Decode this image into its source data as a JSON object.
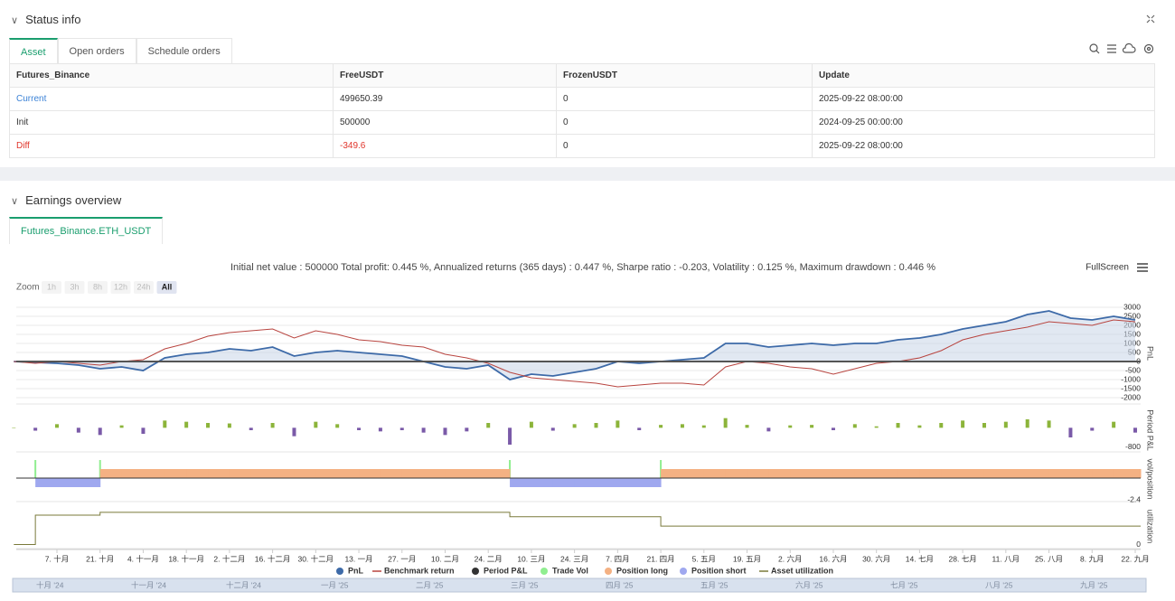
{
  "status": {
    "title": "Status info",
    "tabs": [
      "Asset",
      "Open orders",
      "Schedule orders"
    ],
    "table": {
      "columns": [
        "Futures_Binance",
        "FreeUSDT",
        "FrozenUSDT",
        "Update"
      ],
      "rows": [
        [
          "Current",
          499650.39,
          0,
          "2025-09-22 08:00:00"
        ],
        [
          "Init",
          500000,
          0,
          "2024-09-25 00:00:00"
        ],
        [
          "Diff",
          -349.6,
          0,
          "2025-09-22 08:00:00"
        ]
      ]
    }
  },
  "earnings": {
    "title": "Earnings overview",
    "tab": "Futures_Binance.ETH_USDT",
    "summary": "Initial net value : 500000 Total profit: 0.445 %, Annualized returns (365 days) : 0.447 %, Sharpe ratio : -0.203, Volatility : 0.125 %, Maximum drawdown : 0.446 %",
    "fullscreen": "FullScreen",
    "zoom": {
      "label": "Zoom",
      "buttons": [
        "1h",
        "3h",
        "8h",
        "12h",
        "24h",
        "All"
      ]
    }
  },
  "chart_data": {
    "type": "line",
    "categories": [
      null,
      null,
      "7. 十月",
      null,
      "21. 十月",
      null,
      "4. 十一月",
      null,
      "18. 十一月",
      null,
      "2. 十二月",
      null,
      "16. 十二月",
      null,
      "30. 十二月",
      null,
      "13. 一月",
      null,
      "27. 一月",
      null,
      "10. 二月",
      null,
      "24. 二月",
      null,
      "10. 三月",
      null,
      "24. 三月",
      null,
      "7. 四月",
      null,
      "21. 四月",
      null,
      "5. 五月",
      null,
      "19. 五月",
      null,
      "2. 六月",
      null,
      "16. 六月",
      null,
      "30. 六月",
      null,
      "14. 七月",
      null,
      "28. 七月",
      null,
      "11. 八月",
      null,
      "25. 八月",
      null,
      "8. 九月",
      null,
      "22. 九月"
    ],
    "panels": [
      {
        "label": "PnL",
        "ylim": [
          -2350,
          3250
        ],
        "yticks": [
          3000,
          2500,
          2000,
          1500,
          1000,
          500,
          0,
          -500,
          -1000,
          -1500,
          -2000
        ],
        "grid": true
      },
      {
        "label": "Period P&L",
        "ylim": [
          -1000,
          800
        ],
        "yticks": [
          -800
        ],
        "grid": false
      },
      {
        "label": "vol/position",
        "ylim": [
          -2.6,
          2.4
        ],
        "yticks": [
          -2.4
        ],
        "grid": false
      },
      {
        "label": "utilization",
        "ylim": [
          -0.1,
          1
        ],
        "yticks": [
          0
        ],
        "grid": false
      }
    ],
    "series": [
      {
        "name": "PnL",
        "color": "#3d6aa8",
        "mark": "line",
        "area": true,
        "panel": 0,
        "values": [
          0,
          -50,
          -100,
          -200,
          -400,
          -300,
          -500,
          200,
          400,
          500,
          700,
          600,
          800,
          300,
          500,
          600,
          500,
          400,
          300,
          0,
          -300,
          -400,
          -200,
          -1000,
          -700,
          -800,
          -600,
          -400,
          0,
          -100,
          0,
          100,
          200,
          1000,
          1000,
          800,
          900,
          1000,
          900,
          1000,
          1000,
          1200,
          1300,
          1500,
          1800,
          2000,
          2200,
          2600,
          2800,
          2400,
          2300,
          2500,
          2300
        ]
      },
      {
        "name": "Benchmark return",
        "color": "#b8443f",
        "mark": "line",
        "symbol": "line",
        "panel": 0,
        "values": [
          0,
          -100,
          0,
          -100,
          -200,
          0,
          100,
          700,
          1000,
          1400,
          1600,
          1700,
          1800,
          1300,
          1700,
          1500,
          1200,
          1100,
          900,
          800,
          400,
          200,
          -100,
          -600,
          -900,
          -1000,
          -1100,
          -1200,
          -1400,
          -1300,
          -1200,
          -1200,
          -1300,
          -300,
          0,
          -100,
          -300,
          -400,
          -700,
          -400,
          -100,
          0,
          200,
          600,
          1200,
          1500,
          1700,
          1900,
          2200,
          2100,
          2000,
          2300,
          2200
        ]
      },
      {
        "name": "Period P&L",
        "color": "#333333",
        "up_color": "#8cb43a",
        "down_color": "#7a5aa8",
        "mark": "bar",
        "panel": 1,
        "values": [
          0,
          -120,
          150,
          -200,
          -300,
          100,
          -250,
          300,
          250,
          200,
          180,
          -100,
          200,
          -350,
          250,
          150,
          -100,
          -150,
          -100,
          -200,
          -300,
          -150,
          200,
          -700,
          250,
          -120,
          150,
          200,
          300,
          -100,
          120,
          150,
          100,
          400,
          120,
          -150,
          100,
          120,
          -100,
          150,
          60,
          200,
          100,
          200,
          300,
          200,
          250,
          350,
          300,
          -400,
          -120,
          250,
          -200
        ]
      },
      {
        "name": "Trade Vol",
        "color": "#90ee90",
        "mark": "spike",
        "panel": 2,
        "values": [
          null,
          2,
          null,
          null,
          2,
          null,
          null,
          null,
          null,
          null,
          null,
          null,
          null,
          null,
          null,
          null,
          null,
          null,
          null,
          null,
          null,
          null,
          null,
          2,
          null,
          null,
          null,
          null,
          null,
          null,
          2,
          null,
          null,
          null,
          null,
          null,
          null,
          null,
          null,
          null,
          null,
          null,
          null,
          null,
          null,
          null,
          null,
          null,
          null,
          null,
          null,
          null,
          null
        ]
      },
      {
        "name": "Position long",
        "color": "#f4b183",
        "mark": "band",
        "panel": 2,
        "values": [
          null,
          null,
          null,
          null,
          1,
          1,
          1,
          1,
          1,
          1,
          1,
          1,
          1,
          1,
          1,
          1,
          1,
          1,
          1,
          1,
          1,
          1,
          1,
          null,
          null,
          null,
          null,
          null,
          null,
          null,
          1,
          1,
          1,
          1,
          1,
          1,
          1,
          1,
          1,
          1,
          1,
          1,
          1,
          1,
          1,
          1,
          1,
          1,
          1,
          1,
          1,
          1,
          1
        ]
      },
      {
        "name": "Position short",
        "color": "#9fa8ef",
        "mark": "band",
        "panel": 2,
        "values": [
          null,
          -1,
          -1,
          -1,
          null,
          null,
          null,
          null,
          null,
          null,
          null,
          null,
          null,
          null,
          null,
          null,
          null,
          null,
          null,
          null,
          null,
          null,
          null,
          -1,
          -1,
          -1,
          -1,
          -1,
          -1,
          -1,
          null,
          null,
          null,
          null,
          null,
          null,
          null,
          null,
          null,
          null,
          null,
          null,
          null,
          null,
          null,
          null,
          null,
          null,
          null,
          null,
          null,
          null,
          null
        ]
      },
      {
        "name": "Asset utilization",
        "color": "#7a7a3a",
        "mark": "step",
        "symbol": "line",
        "panel": 3,
        "values": [
          0,
          0.73,
          0.73,
          0.73,
          0.8,
          0.8,
          0.8,
          0.8,
          0.8,
          0.8,
          0.8,
          0.8,
          0.8,
          0.8,
          0.8,
          0.8,
          0.8,
          0.8,
          0.8,
          0.8,
          0.8,
          0.8,
          0.8,
          0.69,
          0.69,
          0.69,
          0.69,
          0.69,
          0.69,
          0.69,
          0.46,
          0.46,
          0.46,
          0.46,
          0.46,
          0.46,
          0.46,
          0.46,
          0.46,
          0.46,
          0.46,
          0.46,
          0.46,
          0.46,
          0.46,
          0.46,
          0.46,
          0.46,
          0.46,
          0.46,
          0.46,
          0.46,
          0.46
        ]
      }
    ],
    "navigator": [
      "十月 '24",
      "十一月 '24",
      "十二月 '24",
      "一月 '25",
      "二月 '25",
      "三月 '25",
      "四月 '25",
      "五月 '25",
      "六月 '25",
      "七月 '25",
      "八月 '25",
      "九月 '25"
    ]
  }
}
